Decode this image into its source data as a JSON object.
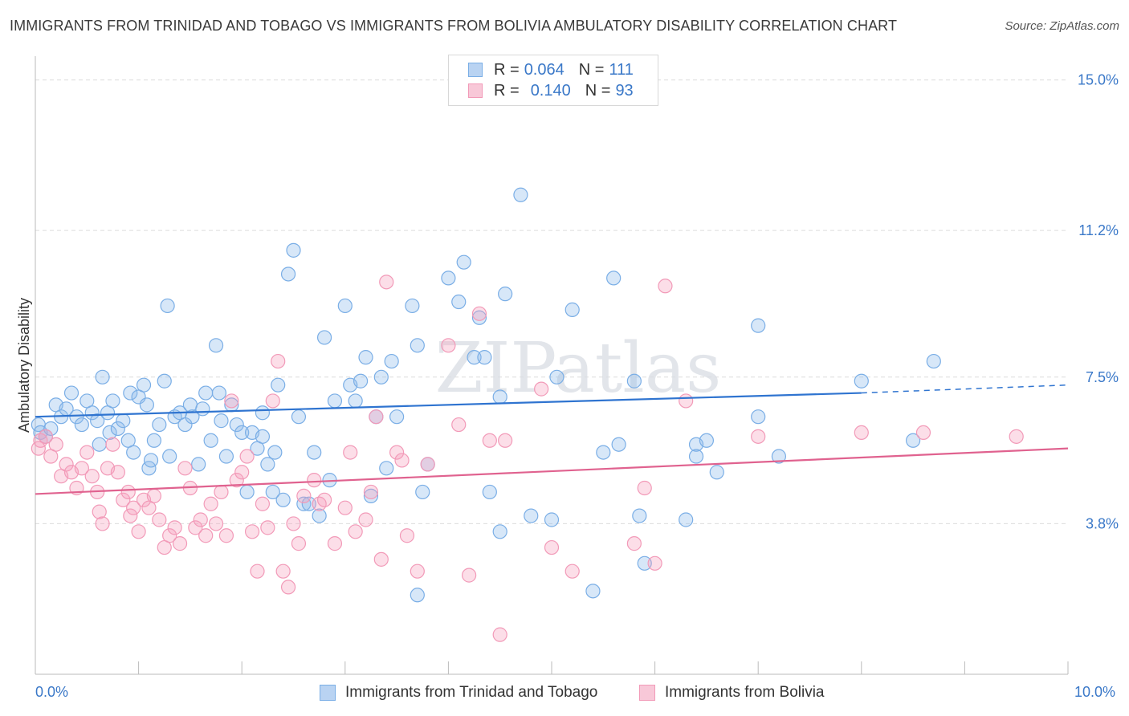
{
  "header": {
    "title": "IMMIGRANTS FROM TRINIDAD AND TOBAGO VS IMMIGRANTS FROM BOLIVIA AMBULATORY DISABILITY CORRELATION CHART",
    "source": "Source: ZipAtlas.com"
  },
  "watermark": "ZIPatlas",
  "legend": {
    "rows": [
      {
        "r_label": "R =",
        "r_value": "0.064",
        "n_label": "N =",
        "n_value": "111",
        "color": "#7aaee6"
      },
      {
        "r_label": "R =",
        "r_value": "0.140",
        "n_label": "N =",
        "n_value": "93",
        "color": "#f29ab8"
      }
    ]
  },
  "x_axis": {
    "min_label": "0.0%",
    "max_label": "10.0%"
  },
  "chart_data": {
    "type": "scatter",
    "title": "IMMIGRANTS FROM TRINIDAD AND TOBAGO VS IMMIGRANTS FROM BOLIVIA AMBULATORY DISABILITY CORRELATION CHART",
    "xlabel": "",
    "ylabel": "Ambulatory Disability",
    "xlim": [
      0,
      10
    ],
    "ylim": [
      0,
      15.6
    ],
    "y_ticks": [
      3.8,
      7.5,
      11.2,
      15.0
    ],
    "y_tick_labels": [
      "3.8%",
      "7.5%",
      "11.2%",
      "15.0%"
    ],
    "grid": "horizontal dashed",
    "legend_position": "top-center",
    "series": [
      {
        "name": "Immigrants from Trinidad and Tobago",
        "color": "#7aaee6",
        "line_color": "#2f74d0",
        "trend": {
          "x0": 0,
          "y0": 6.5,
          "x1": 8.0,
          "y1": 7.1,
          "x_dash_end": 10.0,
          "y_dash_end": 7.3
        },
        "points": [
          [
            0.03,
            6.3
          ],
          [
            0.05,
            6.1
          ],
          [
            0.1,
            6.0
          ],
          [
            0.15,
            6.2
          ],
          [
            0.2,
            6.8
          ],
          [
            0.25,
            6.5
          ],
          [
            0.3,
            6.7
          ],
          [
            0.35,
            7.1
          ],
          [
            0.4,
            6.5
          ],
          [
            0.45,
            6.3
          ],
          [
            0.5,
            6.9
          ],
          [
            0.55,
            6.6
          ],
          [
            0.6,
            6.4
          ],
          [
            0.62,
            5.8
          ],
          [
            0.65,
            7.5
          ],
          [
            0.7,
            6.6
          ],
          [
            0.72,
            6.1
          ],
          [
            0.75,
            6.9
          ],
          [
            0.8,
            6.2
          ],
          [
            0.85,
            6.4
          ],
          [
            0.9,
            5.9
          ],
          [
            0.92,
            7.1
          ],
          [
            0.95,
            5.6
          ],
          [
            1.0,
            7.0
          ],
          [
            1.05,
            7.3
          ],
          [
            1.08,
            6.8
          ],
          [
            1.1,
            5.2
          ],
          [
            1.12,
            5.4
          ],
          [
            1.15,
            5.9
          ],
          [
            1.2,
            6.3
          ],
          [
            1.25,
            7.4
          ],
          [
            1.28,
            9.3
          ],
          [
            1.3,
            5.5
          ],
          [
            1.35,
            6.5
          ],
          [
            1.4,
            6.6
          ],
          [
            1.45,
            6.3
          ],
          [
            1.5,
            6.8
          ],
          [
            1.52,
            6.5
          ],
          [
            1.58,
            5.3
          ],
          [
            1.62,
            6.7
          ],
          [
            1.65,
            7.1
          ],
          [
            1.7,
            5.9
          ],
          [
            1.75,
            8.3
          ],
          [
            1.78,
            7.1
          ],
          [
            1.8,
            6.4
          ],
          [
            1.85,
            5.5
          ],
          [
            1.9,
            6.8
          ],
          [
            1.95,
            6.3
          ],
          [
            2.0,
            6.1
          ],
          [
            2.05,
            4.6
          ],
          [
            2.1,
            6.1
          ],
          [
            2.15,
            5.7
          ],
          [
            2.2,
            6.6
          ],
          [
            2.25,
            5.3
          ],
          [
            2.3,
            4.6
          ],
          [
            2.32,
            5.6
          ],
          [
            2.35,
            7.3
          ],
          [
            2.4,
            4.4
          ],
          [
            2.45,
            10.1
          ],
          [
            2.5,
            10.7
          ],
          [
            2.55,
            6.5
          ],
          [
            2.6,
            4.3
          ],
          [
            2.65,
            4.3
          ],
          [
            2.7,
            5.6
          ],
          [
            2.75,
            4.0
          ],
          [
            2.8,
            8.5
          ],
          [
            2.85,
            4.9
          ],
          [
            2.9,
            6.9
          ],
          [
            3.0,
            9.3
          ],
          [
            3.05,
            7.3
          ],
          [
            3.1,
            6.9
          ],
          [
            3.15,
            7.4
          ],
          [
            3.2,
            8.0
          ],
          [
            3.25,
            4.5
          ],
          [
            3.3,
            6.5
          ],
          [
            3.35,
            7.5
          ],
          [
            3.4,
            5.2
          ],
          [
            3.45,
            7.9
          ],
          [
            3.5,
            6.5
          ],
          [
            3.65,
            9.3
          ],
          [
            3.7,
            8.3
          ],
          [
            3.75,
            4.6
          ],
          [
            3.8,
            5.3
          ],
          [
            4.0,
            10.0
          ],
          [
            4.1,
            9.4
          ],
          [
            4.15,
            10.4
          ],
          [
            4.25,
            8.0
          ],
          [
            4.3,
            9.0
          ],
          [
            4.35,
            8.0
          ],
          [
            4.4,
            4.6
          ],
          [
            4.5,
            7.0
          ],
          [
            4.5,
            3.6
          ],
          [
            4.55,
            9.6
          ],
          [
            4.7,
            12.1
          ],
          [
            4.8,
            4.0
          ],
          [
            5.0,
            3.9
          ],
          [
            5.05,
            7.5
          ],
          [
            5.2,
            9.2
          ],
          [
            5.4,
            2.1
          ],
          [
            5.5,
            5.6
          ],
          [
            5.6,
            10.0
          ],
          [
            5.65,
            5.8
          ],
          [
            5.8,
            7.4
          ],
          [
            5.85,
            4.0
          ],
          [
            5.9,
            2.8
          ],
          [
            6.3,
            3.9
          ],
          [
            6.4,
            5.8
          ],
          [
            6.5,
            5.9
          ],
          [
            6.4,
            5.5
          ],
          [
            6.6,
            5.1
          ],
          [
            7.0,
            8.8
          ],
          [
            7.0,
            6.5
          ],
          [
            7.2,
            5.5
          ],
          [
            8.0,
            7.4
          ],
          [
            8.5,
            5.9
          ],
          [
            8.7,
            7.9
          ],
          [
            3.7,
            2.0
          ],
          [
            2.2,
            6.0
          ]
        ]
      },
      {
        "name": "Immigrants from Bolivia",
        "color": "#f29ab8",
        "line_color": "#e0628f",
        "trend": {
          "x0": 0,
          "y0": 4.55,
          "x1": 10.0,
          "y1": 5.7
        },
        "points": [
          [
            0.03,
            5.7
          ],
          [
            0.05,
            5.9
          ],
          [
            0.1,
            6.0
          ],
          [
            0.15,
            5.5
          ],
          [
            0.2,
            5.8
          ],
          [
            0.25,
            5.0
          ],
          [
            0.3,
            5.3
          ],
          [
            0.35,
            5.1
          ],
          [
            0.4,
            4.7
          ],
          [
            0.45,
            5.2
          ],
          [
            0.5,
            5.6
          ],
          [
            0.55,
            5.0
          ],
          [
            0.6,
            4.6
          ],
          [
            0.62,
            4.1
          ],
          [
            0.65,
            3.8
          ],
          [
            0.7,
            5.2
          ],
          [
            0.75,
            5.8
          ],
          [
            0.8,
            5.1
          ],
          [
            0.85,
            4.4
          ],
          [
            0.9,
            4.6
          ],
          [
            0.92,
            4.0
          ],
          [
            0.95,
            4.2
          ],
          [
            1.0,
            3.6
          ],
          [
            1.05,
            4.4
          ],
          [
            1.1,
            4.2
          ],
          [
            1.15,
            4.5
          ],
          [
            1.2,
            3.9
          ],
          [
            1.25,
            3.2
          ],
          [
            1.3,
            3.5
          ],
          [
            1.35,
            3.7
          ],
          [
            1.4,
            3.3
          ],
          [
            1.45,
            5.2
          ],
          [
            1.5,
            4.7
          ],
          [
            1.55,
            3.7
          ],
          [
            1.6,
            3.9
          ],
          [
            1.65,
            3.5
          ],
          [
            1.7,
            4.3
          ],
          [
            1.75,
            3.8
          ],
          [
            1.8,
            4.6
          ],
          [
            1.85,
            3.5
          ],
          [
            1.9,
            6.9
          ],
          [
            1.95,
            4.9
          ],
          [
            2.0,
            5.1
          ],
          [
            2.05,
            5.5
          ],
          [
            2.1,
            3.6
          ],
          [
            2.15,
            2.6
          ],
          [
            2.2,
            4.3
          ],
          [
            2.25,
            3.7
          ],
          [
            2.3,
            6.9
          ],
          [
            2.35,
            7.9
          ],
          [
            2.4,
            2.6
          ],
          [
            2.45,
            2.2
          ],
          [
            2.5,
            3.8
          ],
          [
            2.55,
            3.3
          ],
          [
            2.6,
            4.5
          ],
          [
            2.7,
            4.9
          ],
          [
            2.75,
            4.3
          ],
          [
            2.8,
            4.4
          ],
          [
            2.9,
            3.3
          ],
          [
            3.0,
            4.2
          ],
          [
            3.05,
            5.6
          ],
          [
            3.1,
            3.6
          ],
          [
            3.2,
            3.9
          ],
          [
            3.25,
            4.6
          ],
          [
            3.3,
            6.5
          ],
          [
            3.35,
            2.9
          ],
          [
            3.4,
            9.9
          ],
          [
            3.5,
            5.6
          ],
          [
            3.55,
            5.4
          ],
          [
            3.6,
            3.5
          ],
          [
            3.7,
            2.6
          ],
          [
            3.8,
            5.3
          ],
          [
            4.0,
            8.3
          ],
          [
            4.1,
            6.3
          ],
          [
            4.2,
            2.5
          ],
          [
            4.3,
            9.1
          ],
          [
            4.4,
            5.9
          ],
          [
            4.5,
            1.0
          ],
          [
            4.55,
            5.9
          ],
          [
            4.9,
            7.2
          ],
          [
            5.0,
            3.2
          ],
          [
            5.2,
            2.6
          ],
          [
            5.8,
            3.3
          ],
          [
            5.9,
            4.7
          ],
          [
            6.0,
            2.8
          ],
          [
            6.1,
            9.8
          ],
          [
            6.3,
            6.9
          ],
          [
            7.0,
            6.0
          ],
          [
            8.0,
            6.1
          ],
          [
            8.6,
            6.1
          ],
          [
            9.5,
            6.0
          ]
        ]
      }
    ]
  }
}
